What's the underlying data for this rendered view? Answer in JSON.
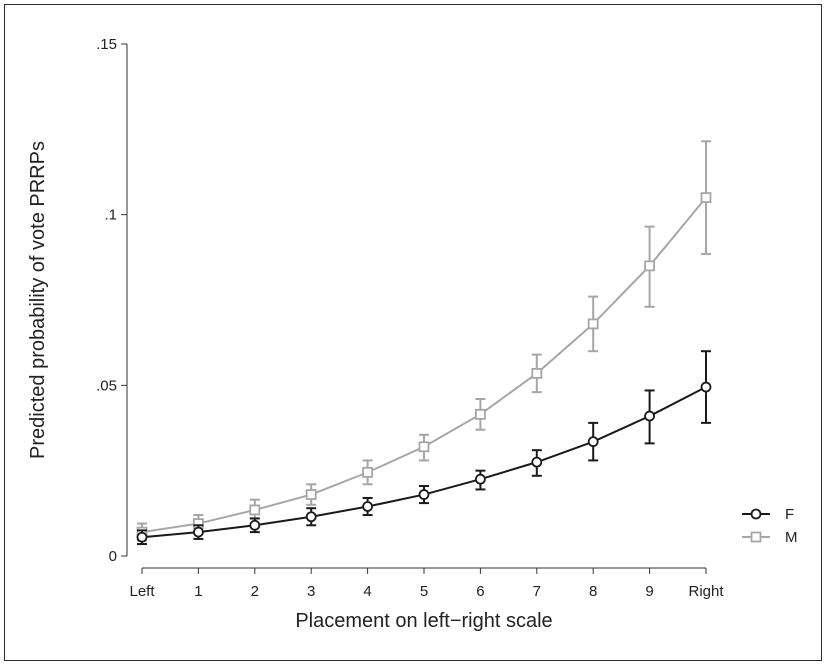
{
  "chart_data": {
    "type": "line",
    "xlabel": "Placement on left−right scale",
    "ylabel": "Predicted probability of vote PRRPs",
    "categories": [
      "Left",
      "1",
      "2",
      "3",
      "4",
      "5",
      "6",
      "7",
      "8",
      "9",
      "Right"
    ],
    "ylim": [
      0,
      0.15
    ],
    "yticks": [
      {
        "value": 0,
        "label": "0"
      },
      {
        "value": 0.05,
        "label": ".05"
      },
      {
        "value": 0.1,
        "label": ".1"
      },
      {
        "value": 0.15,
        "label": ".15"
      }
    ],
    "grid": false,
    "legend_position": "right",
    "series": [
      {
        "name": "F",
        "color": "#1a1a1a",
        "marker": "circle",
        "values": [
          0.0055,
          0.007,
          0.009,
          0.0115,
          0.0145,
          0.018,
          0.0225,
          0.0275,
          0.0335,
          0.041,
          0.0495
        ],
        "lower": [
          0.0035,
          0.005,
          0.007,
          0.009,
          0.012,
          0.0155,
          0.0195,
          0.0235,
          0.028,
          0.033,
          0.039
        ],
        "upper": [
          0.0075,
          0.009,
          0.011,
          0.014,
          0.017,
          0.0205,
          0.025,
          0.031,
          0.039,
          0.0485,
          0.06
        ]
      },
      {
        "name": "M",
        "color": "#a6a6a6",
        "marker": "square",
        "values": [
          0.007,
          0.0095,
          0.0135,
          0.018,
          0.0245,
          0.032,
          0.0415,
          0.0535,
          0.068,
          0.085,
          0.105
        ],
        "lower": [
          0.0045,
          0.007,
          0.011,
          0.015,
          0.021,
          0.028,
          0.037,
          0.048,
          0.06,
          0.073,
          0.0885
        ],
        "upper": [
          0.0095,
          0.012,
          0.0165,
          0.021,
          0.028,
          0.0355,
          0.046,
          0.059,
          0.076,
          0.0965,
          0.1215
        ]
      }
    ]
  }
}
